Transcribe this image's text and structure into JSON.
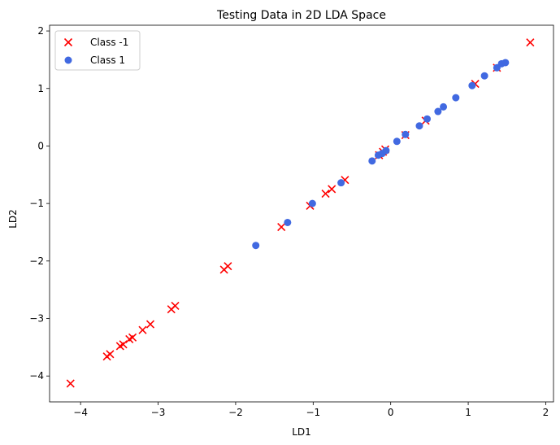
{
  "chart_data": {
    "type": "scatter",
    "title": "Testing Data in 2D LDA Space",
    "xlabel": "LD1",
    "ylabel": "LD2",
    "xlim": [
      -4.4,
      2.1
    ],
    "ylim": [
      -4.45,
      2.1
    ],
    "xticks": [
      -4,
      -3,
      -2,
      -1,
      0,
      1,
      2
    ],
    "yticks": [
      -4,
      -3,
      -2,
      -1,
      0,
      1,
      2
    ],
    "tick_labels_x": [
      "−4",
      "−3",
      "−2",
      "−1",
      "0",
      "1",
      "2"
    ],
    "tick_labels_y": [
      "−4",
      "−3",
      "−2",
      "−1",
      "0",
      "1",
      "2"
    ],
    "grid": false,
    "legend_position": "top-left",
    "series": [
      {
        "name": "Class -1",
        "marker": "x",
        "color": "#ff0000",
        "points": [
          [
            -4.13,
            -4.13
          ],
          [
            -3.66,
            -3.66
          ],
          [
            -3.62,
            -3.62
          ],
          [
            -3.49,
            -3.48
          ],
          [
            -3.45,
            -3.45
          ],
          [
            -3.37,
            -3.36
          ],
          [
            -3.33,
            -3.33
          ],
          [
            -3.2,
            -3.2
          ],
          [
            -3.1,
            -3.1
          ],
          [
            -2.83,
            -2.84
          ],
          [
            -2.78,
            -2.78
          ],
          [
            -2.15,
            -2.15
          ],
          [
            -2.1,
            -2.09
          ],
          [
            -1.41,
            -1.41
          ],
          [
            -1.04,
            -1.04
          ],
          [
            -0.84,
            -0.83
          ],
          [
            -0.76,
            -0.75
          ],
          [
            -0.59,
            -0.59
          ],
          [
            -0.15,
            -0.16
          ],
          [
            -0.1,
            -0.1
          ],
          [
            -0.07,
            -0.06
          ],
          [
            0.19,
            0.19
          ],
          [
            0.45,
            0.44
          ],
          [
            1.09,
            1.08
          ],
          [
            1.37,
            1.36
          ],
          [
            1.8,
            1.8
          ]
        ]
      },
      {
        "name": "Class 1",
        "marker": "o",
        "color": "#4169e1",
        "points": [
          [
            -1.74,
            -1.73
          ],
          [
            -1.33,
            -1.33
          ],
          [
            -1.01,
            -1.0
          ],
          [
            -0.64,
            -0.64
          ],
          [
            -0.24,
            -0.26
          ],
          [
            -0.16,
            -0.16
          ],
          [
            -0.11,
            -0.13
          ],
          [
            -0.06,
            -0.08
          ],
          [
            0.08,
            0.08
          ],
          [
            0.19,
            0.2
          ],
          [
            0.37,
            0.35
          ],
          [
            0.47,
            0.47
          ],
          [
            0.61,
            0.6
          ],
          [
            0.68,
            0.68
          ],
          [
            0.84,
            0.84
          ],
          [
            1.05,
            1.05
          ],
          [
            1.21,
            1.22
          ],
          [
            1.37,
            1.36
          ],
          [
            1.43,
            1.43
          ],
          [
            1.48,
            1.45
          ]
        ]
      }
    ]
  }
}
